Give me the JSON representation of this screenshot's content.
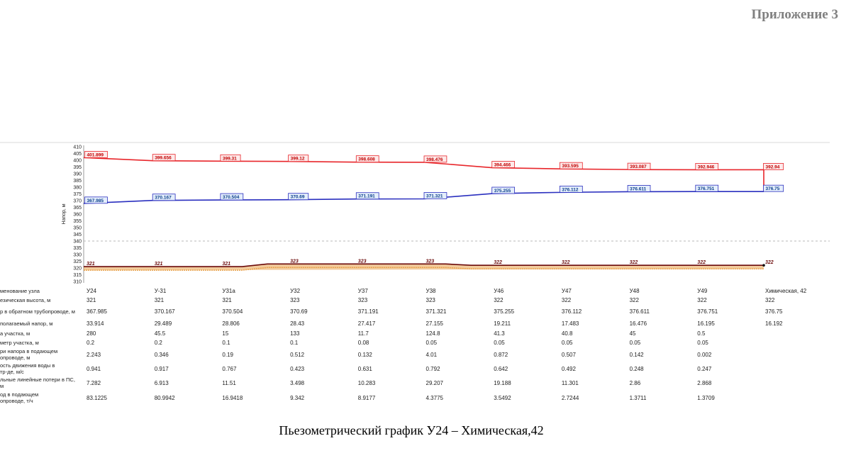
{
  "appendix_label": "Приложение 3",
  "caption": "Пьезометрический график У24 – Химическая,42",
  "colors": {
    "supply": "#e8262b",
    "return": "#2a2fbf",
    "ground": "#6b0a0a",
    "ground_fill": "#e8a04a",
    "grid": "#d8d8d8",
    "dashed": "#b9b9b9"
  },
  "chart_data": {
    "type": "line",
    "ylabel": "Напор, м",
    "ylim": [
      310,
      410
    ],
    "y_ticks": [
      410,
      405,
      400,
      395,
      390,
      385,
      380,
      375,
      370,
      365,
      360,
      355,
      350,
      345,
      340,
      335,
      330,
      325,
      320,
      315,
      310
    ],
    "dashed_line": 340,
    "categories": [
      "У24",
      "У-31",
      "У31а",
      "У32",
      "У37",
      "У38",
      "У46",
      "У47",
      "У48",
      "У49",
      "Химическая, 42"
    ],
    "series": [
      {
        "key": "supply",
        "values": [
          401.899,
          399.656,
          399.31,
          399.12,
          398.608,
          398.476,
          394.466,
          393.595,
          393.087,
          392.946,
          392.94
        ],
        "labels": [
          "401.899",
          "399.656",
          "399.31",
          "399.12",
          "398.608",
          "398.476",
          "394.466",
          "393.595",
          "393.087",
          "392.946",
          "392.94"
        ]
      },
      {
        "key": "return",
        "values": [
          367.985,
          370.167,
          370.504,
          370.69,
          371.191,
          371.321,
          375.255,
          376.112,
          376.611,
          376.751,
          376.75
        ],
        "labels": [
          "367.985",
          "370.167",
          "370.504",
          "370.69",
          "371.191",
          "371.321",
          "375.255",
          "376.112",
          "376.611",
          "376.751",
          "376.75"
        ]
      },
      {
        "key": "ground",
        "values": [
          321,
          321,
          321,
          323,
          323,
          323,
          322,
          322,
          322,
          322,
          322
        ],
        "labels": [
          "321",
          "321",
          "321",
          "323",
          "323",
          "323",
          "322",
          "322",
          "322",
          "322",
          "322"
        ]
      }
    ],
    "table": {
      "rows": [
        {
          "header": [
            "менование узла"
          ],
          "cells": [
            "У24",
            "У-31",
            "У31а",
            "У32",
            "У37",
            "У38",
            "У46",
            "У47",
            "У48",
            "У49",
            "Химическая, 42"
          ]
        },
        {
          "header": [
            "езическая высота, м"
          ],
          "cells": [
            "321",
            "321",
            "321",
            "323",
            "323",
            "323",
            "322",
            "322",
            "322",
            "322",
            "322"
          ]
        },
        {
          "header": [
            "р в обратном трубопроводе, м"
          ],
          "cells": [
            "367.985",
            "370.167",
            "370.504",
            "370.69",
            "371.191",
            "371.321",
            "375.255",
            "376.112",
            "376.611",
            "376.751",
            "376.75"
          ]
        },
        {
          "header": [
            "полагаемый напор, м"
          ],
          "cells": [
            "33.914",
            "29.489",
            "28.806",
            "28.43",
            "27.417",
            "27.155",
            "19.211",
            "17.483",
            "16.476",
            "16.195",
            "16.192"
          ]
        },
        {
          "header": [
            "а участка, м"
          ],
          "cells": [
            "280",
            "45.5",
            "15",
            "133",
            "11.7",
            "124.8",
            "41.3",
            "40.8",
            "45",
            "0.5",
            ""
          ]
        },
        {
          "header": [
            "метр участка, м"
          ],
          "cells": [
            "0.2",
            "0.2",
            "0.1",
            "0.1",
            "0.08",
            "0.05",
            "0.05",
            "0.05",
            "0.05",
            "0.05",
            ""
          ]
        },
        {
          "header": [
            "ри напора в подающем",
            "опроводе, м"
          ],
          "cells": [
            "2.243",
            "0.346",
            "0.19",
            "0.512",
            "0.132",
            "4.01",
            "0.872",
            "0.507",
            "0.142",
            "0.002",
            ""
          ]
        },
        {
          "header": [
            "ость движения воды в",
            "тр-де, м/с"
          ],
          "cells": [
            "0.941",
            "0.917",
            "0.767",
            "0.423",
            "0.631",
            "0.792",
            "0.642",
            "0.492",
            "0.248",
            "0.247",
            ""
          ]
        },
        {
          "header": [
            "льные линейные потери в ПС,",
            "м"
          ],
          "cells": [
            "7.282",
            "6.913",
            "11.51",
            "3.498",
            "10.283",
            "29.207",
            "19.188",
            "11.301",
            "2.86",
            "2.868",
            ""
          ]
        },
        {
          "header": [
            "од в подающем",
            "опроводе, т/ч"
          ],
          "cells": [
            "83.1225",
            "80.9942",
            "16.9418",
            "9.342",
            "8.9177",
            "4.3775",
            "3.5492",
            "2.7244",
            "1.3711",
            "1.3709",
            ""
          ]
        }
      ]
    }
  }
}
